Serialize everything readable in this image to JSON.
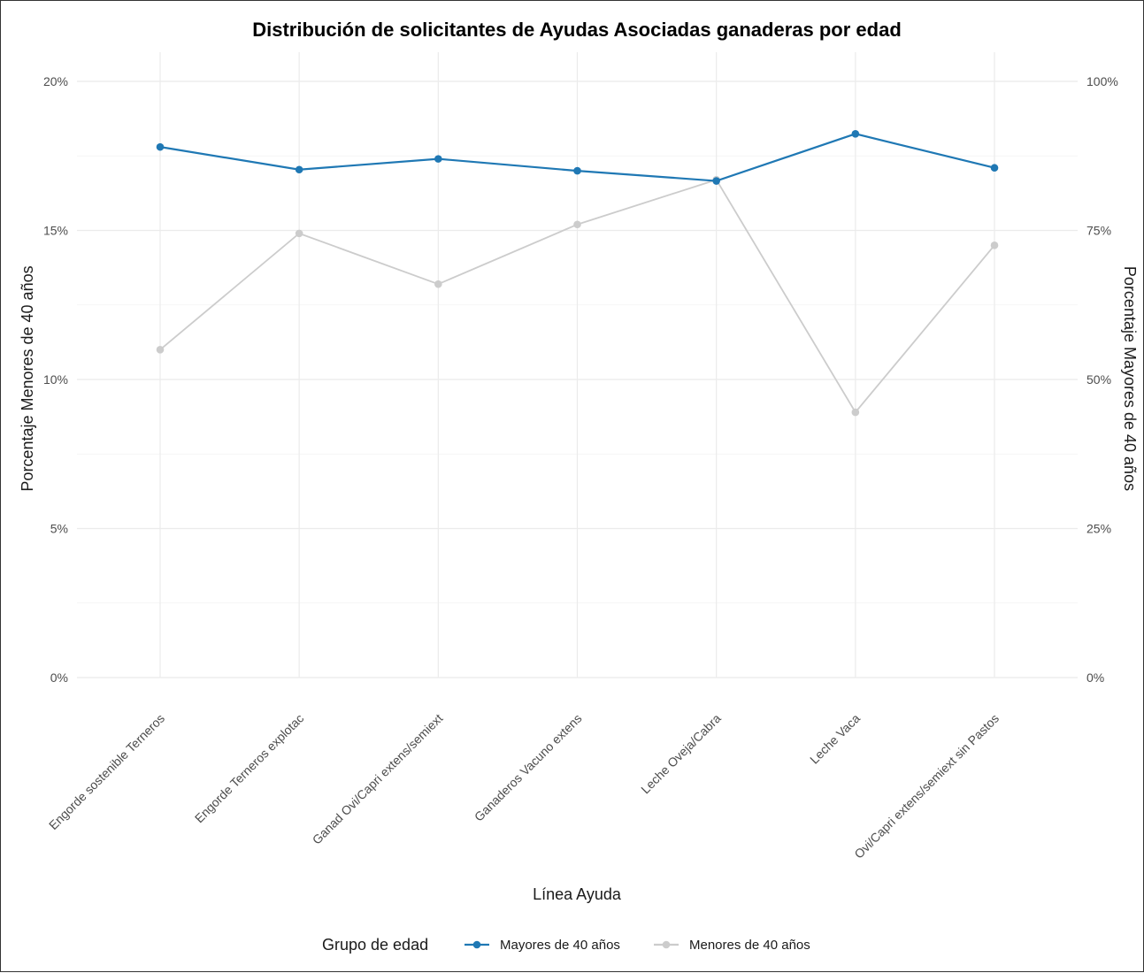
{
  "chart_data": {
    "type": "line",
    "title": "Distribución de solicitantes de Ayudas Asociadas ganaderas por edad",
    "xlabel": "Línea Ayuda",
    "ylabel": "Porcentaje Menores de 40 años",
    "ylabel_right": "Porcentaje Mayores de 40 años",
    "categories": [
      "Engorde sostenible Terneros",
      "Engorde Terneros explotac",
      "Ganad Ovi/Capri extens/semiext",
      "Ganaderos Vacuno extens",
      "Leche Oveja/Cabra",
      "Leche Vaca",
      "Ovi/Capri extens/semiext sin Pastos"
    ],
    "y_left": {
      "min": 0,
      "max": 20,
      "ticks": [
        0,
        5,
        10,
        15,
        20
      ],
      "tick_labels": [
        "0%",
        "5%",
        "10%",
        "15%",
        "20%"
      ]
    },
    "y_right": {
      "min": 0,
      "max": 100,
      "ticks": [
        0,
        25,
        50,
        75,
        100
      ],
      "tick_labels": [
        "0%",
        "25%",
        "50%",
        "75%",
        "100%"
      ]
    },
    "series": [
      {
        "name": "Mayores de 40 años",
        "axis": "right",
        "color": "#1f78b4",
        "values": [
          89.0,
          85.2,
          87.0,
          85.0,
          83.3,
          91.2,
          85.5
        ]
      },
      {
        "name": "Menores de 40 años",
        "axis": "left",
        "color": "#cccccc",
        "values": [
          11.0,
          14.9,
          13.2,
          15.2,
          16.7,
          8.9,
          14.5
        ]
      }
    ],
    "grid": true,
    "legend": {
      "title": "Grupo de edad",
      "position": "bottom"
    }
  }
}
